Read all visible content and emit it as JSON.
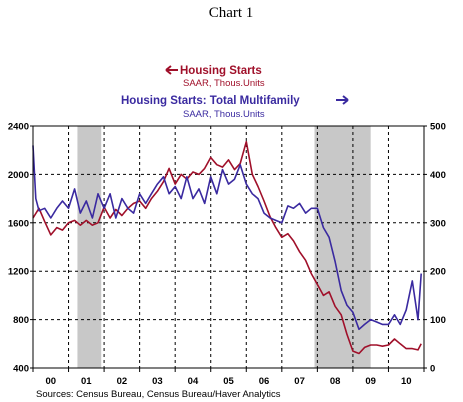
{
  "chart_data": {
    "type": "line",
    "title": "Chart 1",
    "legend": [
      {
        "name": "Housing Starts",
        "unit": "SAAR, Thous.Units",
        "color": "#a0102a",
        "arrow": "left",
        "axis": "left"
      },
      {
        "name": "Housing Starts: Total Multifamily",
        "unit": "SAAR, Thous.Units",
        "color": "#3a2aa0",
        "arrow": "right",
        "axis": "right"
      }
    ],
    "x_range": [
      2000,
      2011
    ],
    "x_ticks": [
      {
        "label": "00",
        "x": 2000.5
      },
      {
        "label": "01",
        "x": 2001.5
      },
      {
        "label": "02",
        "x": 2002.5
      },
      {
        "label": "03",
        "x": 2003.5
      },
      {
        "label": "04",
        "x": 2004.5
      },
      {
        "label": "05",
        "x": 2005.5
      },
      {
        "label": "06",
        "x": 2006.5
      },
      {
        "label": "07",
        "x": 2007.5
      },
      {
        "label": "08",
        "x": 2008.5
      },
      {
        "label": "09",
        "x": 2009.5
      },
      {
        "label": "10",
        "x": 2010.5
      }
    ],
    "vgrid_x": [
      2001,
      2002,
      2003,
      2004,
      2005,
      2006,
      2007,
      2008,
      2009,
      2010
    ],
    "y_left": {
      "range": [
        400,
        2400
      ],
      "ticks": [
        "400",
        "800",
        "1200",
        "1600",
        "2000",
        "2400"
      ]
    },
    "y_right": {
      "range": [
        0,
        500
      ],
      "ticks": [
        "0",
        "100",
        "200",
        "300",
        "400",
        "500"
      ]
    },
    "hgrid_left": [
      800,
      1200,
      1600,
      2000
    ],
    "recessions": [
      [
        2001.25,
        2001.92
      ],
      [
        2007.92,
        2009.5
      ]
    ],
    "series": [
      {
        "name": "Housing Starts",
        "axis": "left",
        "color": "#a0102a",
        "points": [
          [
            2000.0,
            1640
          ],
          [
            2000.17,
            1720
          ],
          [
            2000.33,
            1610
          ],
          [
            2000.5,
            1500
          ],
          [
            2000.67,
            1560
          ],
          [
            2000.83,
            1540
          ],
          [
            2001.0,
            1600
          ],
          [
            2001.17,
            1620
          ],
          [
            2001.33,
            1580
          ],
          [
            2001.5,
            1620
          ],
          [
            2001.67,
            1580
          ],
          [
            2001.83,
            1600
          ],
          [
            2002.0,
            1730
          ],
          [
            2002.17,
            1640
          ],
          [
            2002.33,
            1710
          ],
          [
            2002.5,
            1660
          ],
          [
            2002.67,
            1720
          ],
          [
            2002.83,
            1760
          ],
          [
            2003.0,
            1780
          ],
          [
            2003.17,
            1720
          ],
          [
            2003.33,
            1800
          ],
          [
            2003.5,
            1860
          ],
          [
            2003.67,
            1940
          ],
          [
            2003.83,
            2050
          ],
          [
            2004.0,
            1920
          ],
          [
            2004.17,
            2000
          ],
          [
            2004.33,
            1960
          ],
          [
            2004.5,
            2020
          ],
          [
            2004.67,
            2000
          ],
          [
            2004.83,
            2050
          ],
          [
            2005.0,
            2140
          ],
          [
            2005.17,
            2080
          ],
          [
            2005.33,
            2060
          ],
          [
            2005.5,
            2120
          ],
          [
            2005.67,
            2040
          ],
          [
            2005.83,
            2090
          ],
          [
            2006.0,
            2270
          ],
          [
            2006.17,
            2000
          ],
          [
            2006.33,
            1900
          ],
          [
            2006.5,
            1780
          ],
          [
            2006.67,
            1650
          ],
          [
            2006.83,
            1560
          ],
          [
            2007.0,
            1480
          ],
          [
            2007.17,
            1510
          ],
          [
            2007.33,
            1450
          ],
          [
            2007.5,
            1360
          ],
          [
            2007.67,
            1290
          ],
          [
            2007.83,
            1180
          ],
          [
            2008.0,
            1090
          ],
          [
            2008.17,
            1000
          ],
          [
            2008.33,
            1030
          ],
          [
            2008.5,
            910
          ],
          [
            2008.67,
            840
          ],
          [
            2008.83,
            680
          ],
          [
            2009.0,
            540
          ],
          [
            2009.17,
            520
          ],
          [
            2009.33,
            570
          ],
          [
            2009.5,
            590
          ],
          [
            2009.67,
            590
          ],
          [
            2009.83,
            580
          ],
          [
            2010.0,
            590
          ],
          [
            2010.17,
            640
          ],
          [
            2010.33,
            600
          ],
          [
            2010.5,
            560
          ],
          [
            2010.67,
            560
          ],
          [
            2010.83,
            550
          ],
          [
            2010.92,
            600
          ]
        ]
      },
      {
        "name": "Housing Starts: Total Multifamily",
        "axis": "right",
        "color": "#3a2aa0",
        "points": [
          [
            2000.0,
            460
          ],
          [
            2000.08,
            350
          ],
          [
            2000.17,
            325
          ],
          [
            2000.33,
            330
          ],
          [
            2000.5,
            310
          ],
          [
            2000.67,
            330
          ],
          [
            2000.83,
            345
          ],
          [
            2001.0,
            330
          ],
          [
            2001.17,
            370
          ],
          [
            2001.33,
            320
          ],
          [
            2001.5,
            345
          ],
          [
            2001.67,
            310
          ],
          [
            2001.83,
            360
          ],
          [
            2002.0,
            330
          ],
          [
            2002.17,
            360
          ],
          [
            2002.33,
            310
          ],
          [
            2002.5,
            350
          ],
          [
            2002.67,
            330
          ],
          [
            2002.83,
            320
          ],
          [
            2003.0,
            360
          ],
          [
            2003.17,
            340
          ],
          [
            2003.33,
            360
          ],
          [
            2003.5,
            380
          ],
          [
            2003.67,
            395
          ],
          [
            2003.83,
            360
          ],
          [
            2004.0,
            375
          ],
          [
            2004.17,
            350
          ],
          [
            2004.33,
            395
          ],
          [
            2004.5,
            350
          ],
          [
            2004.67,
            370
          ],
          [
            2004.83,
            340
          ],
          [
            2005.0,
            395
          ],
          [
            2005.17,
            360
          ],
          [
            2005.33,
            410
          ],
          [
            2005.5,
            380
          ],
          [
            2005.67,
            390
          ],
          [
            2005.83,
            420
          ],
          [
            2006.0,
            380
          ],
          [
            2006.17,
            360
          ],
          [
            2006.33,
            350
          ],
          [
            2006.5,
            320
          ],
          [
            2006.67,
            310
          ],
          [
            2006.83,
            305
          ],
          [
            2007.0,
            300
          ],
          [
            2007.17,
            335
          ],
          [
            2007.33,
            330
          ],
          [
            2007.5,
            340
          ],
          [
            2007.67,
            320
          ],
          [
            2007.83,
            330
          ],
          [
            2008.0,
            330
          ],
          [
            2008.17,
            290
          ],
          [
            2008.33,
            270
          ],
          [
            2008.5,
            220
          ],
          [
            2008.67,
            160
          ],
          [
            2008.83,
            130
          ],
          [
            2009.0,
            115
          ],
          [
            2009.17,
            80
          ],
          [
            2009.33,
            90
          ],
          [
            2009.5,
            100
          ],
          [
            2009.67,
            95
          ],
          [
            2009.83,
            90
          ],
          [
            2010.0,
            90
          ],
          [
            2010.17,
            110
          ],
          [
            2010.33,
            90
          ],
          [
            2010.5,
            120
          ],
          [
            2010.67,
            180
          ],
          [
            2010.83,
            100
          ],
          [
            2010.92,
            195
          ]
        ]
      }
    ],
    "source": "Sources:  Census Bureau, Census Bureau/Haver Analytics"
  }
}
